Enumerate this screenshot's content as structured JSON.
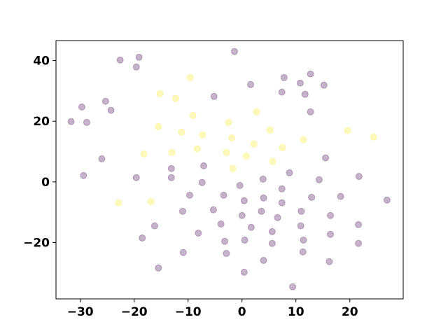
{
  "chart_data": {
    "type": "scatter",
    "xlim": [
      -34.5,
      29.9
    ],
    "ylim": [
      -38.6,
      46.6
    ],
    "xticks": [
      {
        "value": -30,
        "label": "−30"
      },
      {
        "value": -20,
        "label": "−20"
      },
      {
        "value": -10,
        "label": "−10"
      },
      0,
      10,
      20
    ],
    "yticks": [
      {
        "value": -20,
        "label": "−20"
      },
      0,
      20,
      40
    ],
    "opacity": 0.3,
    "series": [
      {
        "color": "#440154",
        "x": [
          -31.7,
          -29.7,
          -28.8,
          -29.4,
          -25.3,
          -24.3,
          -26.0,
          -22.6,
          -19.1,
          -19.6,
          -19.6,
          -18.5,
          -16.2,
          -15.5,
          -13.1,
          -13.1,
          -9.7,
          -11.0,
          -10.9,
          -7.1,
          -7.4,
          -8.1,
          -5.2,
          -5.3,
          -3.9,
          -3.4,
          -3.2,
          -2.9,
          -1.4,
          -0.4,
          0.4,
          0,
          0.5,
          0.4,
          1.6,
          1.7,
          3.9,
          4.0,
          3.6,
          4.0,
          5.6,
          5.6,
          6.6,
          7.8,
          7.4,
          7.4,
          7.4,
          8.8,
          9.4,
          10.8,
          11.7,
          12.7,
          12.7,
          11.0,
          10.9,
          11.4,
          11.3,
          12.9,
          15.2,
          15.5,
          14.3,
          16.4,
          16.4,
          16.2,
          18.3,
          21.7,
          21.6,
          21.6,
          26.9
        ],
        "y": [
          19.9,
          24.7,
          19.6,
          2.1,
          26.6,
          23.6,
          7.6,
          40.2,
          41.1,
          37.9,
          1.4,
          -18.5,
          -14.5,
          -28.4,
          4.4,
          1.4,
          -4.4,
          -9.7,
          -23.3,
          5.3,
          -0.2,
          -16.9,
          28.2,
          -9.2,
          -13.9,
          -4.4,
          -19.6,
          -23.6,
          43.0,
          -1.2,
          -6.2,
          -11.1,
          -19.2,
          -29.8,
          32.1,
          -15.0,
          0.9,
          -5.3,
          -9.7,
          -25.9,
          -16.4,
          -20.3,
          -11.8,
          34.4,
          29.6,
          -2.3,
          -6.9,
          3.0,
          -34.6,
          32.6,
          28.9,
          35.6,
          23.1,
          -9.7,
          -14.5,
          -19.2,
          -23.1,
          -5.1,
          31.9,
          7.9,
          0.7,
          -11.1,
          -17.3,
          -26.3,
          -4.8,
          1.8,
          -14.1,
          -20.3,
          -6.0
        ]
      },
      {
        "color": "#fde725",
        "x": [
          -9.6,
          -15.2,
          -12.3,
          -9.1,
          -15.5,
          -11.2,
          -7.3,
          -18.2,
          -13.0,
          -8.3,
          -2.5,
          -1.9,
          -2.9,
          -1.7,
          0.8,
          2.2,
          2.7,
          5.2,
          5.7,
          7.5,
          11.4,
          19.6,
          24.4,
          -22.9,
          -16.9
        ],
        "y": [
          34.4,
          29.1,
          27.5,
          21.9,
          18.2,
          16.4,
          15.5,
          9.2,
          9.7,
          10.9,
          19.6,
          14.5,
          9.7,
          4.4,
          8.5,
          12.5,
          23.1,
          17.1,
          6.7,
          11.3,
          13.9,
          16.9,
          14.8,
          -6.9,
          -6.5
        ]
      }
    ]
  }
}
